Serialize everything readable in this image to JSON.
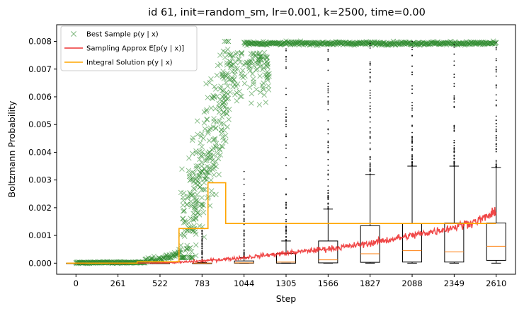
{
  "chart_data": {
    "type": "scatter",
    "title": "id 61, init=random_sm, lr=0.001, k=2500, time=0.00",
    "xlabel": "Step",
    "ylabel": "Boltzmann Probability",
    "xlim": [
      -120,
      2730
    ],
    "ylim": [
      -0.0004,
      0.0086
    ],
    "x_ticks": [
      0,
      261,
      522,
      783,
      1044,
      1305,
      1566,
      1827,
      2088,
      2349,
      2610
    ],
    "y_ticks": [
      0.0,
      0.001,
      0.002,
      0.003,
      0.004,
      0.005,
      0.006,
      0.007,
      0.008
    ],
    "y_tick_labels": [
      "0.000",
      "0.001",
      "0.002",
      "0.003",
      "0.004",
      "0.005",
      "0.006",
      "0.007",
      "0.008"
    ],
    "grid": false,
    "legend_position": "upper-left",
    "series": [
      {
        "name": "Best Sample p(y | x)",
        "type": "scatter",
        "marker": "x",
        "color": "#2e8b2e",
        "points_summary": {
          "phases": [
            {
              "x_range": [
                0,
                430
              ],
              "y_typical": 2e-05
            },
            {
              "x_range": [
                430,
                650
              ],
              "y_range": [
                0.0,
                0.0006
              ]
            },
            {
              "x_range": [
                650,
                950
              ],
              "y_range": [
                0.0005,
                0.0075
              ]
            },
            {
              "x_range": [
                950,
                1200
              ],
              "y_range": [
                0.0055,
                0.0079
              ]
            },
            {
              "x_range": [
                1044,
                2610
              ],
              "y_typical": 0.00795
            }
          ]
        }
      },
      {
        "name": "Sampling Approx E[p(y | x)]",
        "type": "line",
        "color": "#ee3333",
        "x": [
          0,
          300,
          522,
          650,
          783,
          900,
          1044,
          1200,
          1305,
          1450,
          1566,
          1700,
          1827,
          1950,
          2088,
          2200,
          2349,
          2500,
          2610
        ],
        "values": [
          0.0,
          0.0,
          1e-05,
          3e-05,
          8e-05,
          0.00013,
          0.0002,
          0.0003,
          0.00036,
          0.00045,
          0.00052,
          0.00061,
          0.00072,
          0.00085,
          0.001,
          0.00112,
          0.0013,
          0.00155,
          0.00183
        ]
      },
      {
        "name": "Integral Solution p(y | x)",
        "type": "step",
        "color": "#ffa500",
        "x": [
          -60,
          380,
          640,
          820,
          930,
          2610
        ],
        "values": [
          0.0,
          5e-05,
          0.00125,
          0.0029,
          0.00143,
          0.00143
        ]
      }
    ],
    "boxplots": [
      {
        "x": 0,
        "q1": 0.0,
        "median": 0.0,
        "q3": 0.0,
        "whisker_low": 0.0,
        "whisker_high": 0.0
      },
      {
        "x": 261,
        "q1": 0.0,
        "median": 0.0,
        "q3": 0.0,
        "whisker_low": 0.0,
        "whisker_high": 0.0
      },
      {
        "x": 522,
        "q1": 0.0,
        "median": 0.0,
        "q3": 0.0,
        "whisker_low": 0.0,
        "whisker_high": 0.0
      },
      {
        "x": 783,
        "q1": 0.0,
        "median": 0.0,
        "q3": 0.0,
        "whisker_low": 0.0,
        "whisker_high": 2e-05,
        "outliers_max": 0.0012
      },
      {
        "x": 1044,
        "q1": 0.0,
        "median": 1e-05,
        "q3": 8e-05,
        "whisker_low": 0.0,
        "whisker_high": 0.0002,
        "outliers_max": 0.0034
      },
      {
        "x": 1305,
        "q1": 0.0,
        "median": 4e-05,
        "q3": 0.00035,
        "whisker_low": 0.0,
        "whisker_high": 0.0008,
        "outliers_max": 0.0079
      },
      {
        "x": 1566,
        "q1": 1e-05,
        "median": 0.00012,
        "q3": 0.0008,
        "whisker_low": 0.0,
        "whisker_high": 0.00195,
        "outliers_max": 0.0079
      },
      {
        "x": 1827,
        "q1": 3e-05,
        "median": 0.00034,
        "q3": 0.00135,
        "whisker_low": 0.0,
        "whisker_high": 0.0032,
        "outliers_max": 0.008
      },
      {
        "x": 2088,
        "q1": 4e-05,
        "median": 0.00045,
        "q3": 0.00143,
        "whisker_low": 0.0,
        "whisker_high": 0.0035,
        "outliers_max": 0.008
      },
      {
        "x": 2349,
        "q1": 4e-05,
        "median": 0.00041,
        "q3": 0.00145,
        "whisker_low": 0.0,
        "whisker_high": 0.0035,
        "outliers_max": 0.008
      },
      {
        "x": 2610,
        "q1": 0.0001,
        "median": 0.00061,
        "q3": 0.00145,
        "whisker_low": 0.0,
        "whisker_high": 0.00345,
        "outliers_max": 0.008
      }
    ]
  }
}
